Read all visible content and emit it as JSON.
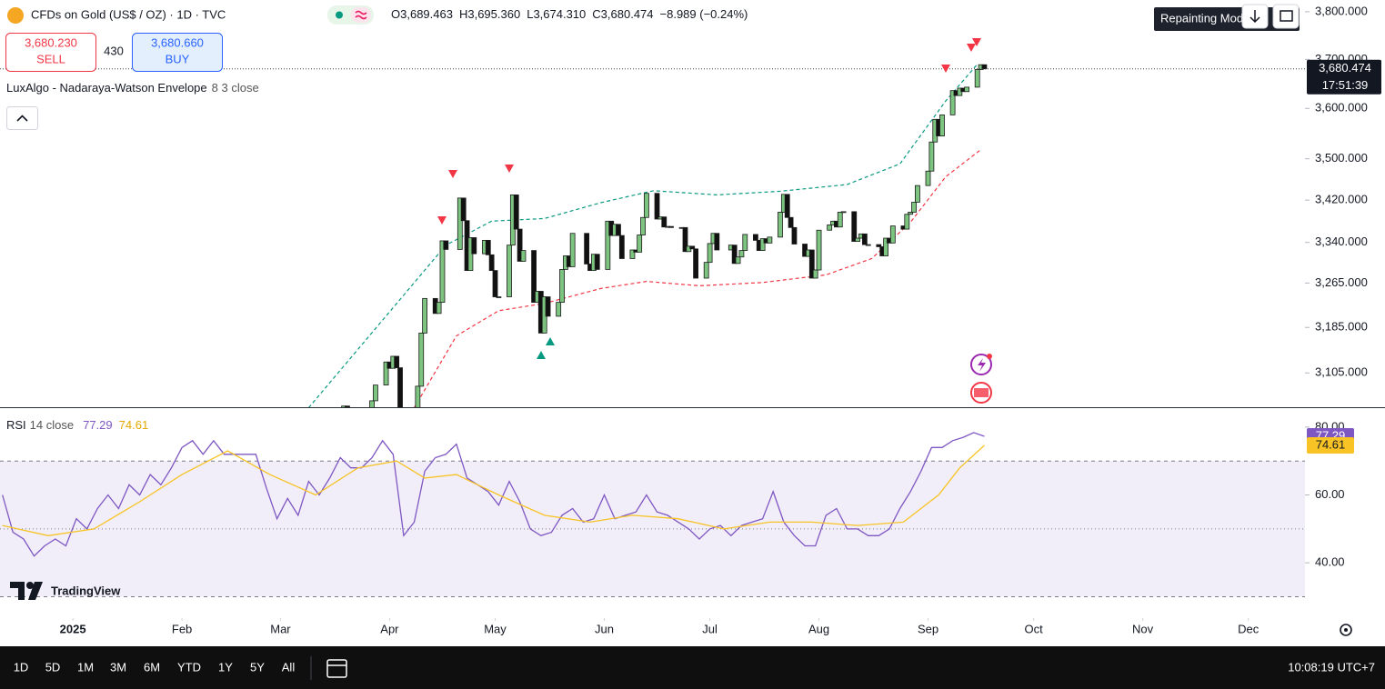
{
  "header": {
    "title": "CFDs on Gold (US$ / OZ) · 1D · TVC",
    "ohlc": [
      {
        "key": "O",
        "value": "3,689.463"
      },
      {
        "key": "H",
        "value": "3,695.360"
      },
      {
        "key": "L",
        "value": "3,674.310"
      },
      {
        "key": "C",
        "value": "3,680.474"
      }
    ],
    "change": "−8.989 (−0.24%)"
  },
  "trade": {
    "sell_price": "3,680.230",
    "sell": "SELL",
    "spread": "430",
    "buy_price": "3,680.660",
    "buy": "BUY"
  },
  "indicator": {
    "name": "LuxAlgo - Nadaraya-Watson Envelope",
    "params": "8 3 close"
  },
  "tooltip": "Repainting Mode",
  "price_label": {
    "price": "3,680.474",
    "countdown": "17:51:39"
  },
  "logo": "TradingView",
  "toolbar": {
    "ranges": [
      "1D",
      "5D",
      "1M",
      "3M",
      "6M",
      "YTD",
      "1Y",
      "5Y",
      "All"
    ],
    "clock": "10:08:19 UTC+7"
  },
  "chart_data": [
    {
      "type": "candlestick",
      "log_scale": true,
      "up_color": "#7cc47f",
      "down_color": "#111111",
      "xlim": [
        -20.7,
        350.1
      ],
      "ylim": [
        3046,
        3825
      ],
      "xticks": [
        {
          "value": 0,
          "label": "2025"
        },
        {
          "value": 31,
          "label": "Feb"
        },
        {
          "value": 59,
          "label": "Mar"
        },
        {
          "value": 90,
          "label": "Apr"
        },
        {
          "value": 120,
          "label": "May"
        },
        {
          "value": 151,
          "label": "Jun"
        },
        {
          "value": 181,
          "label": "Jul"
        },
        {
          "value": 212,
          "label": "Aug"
        },
        {
          "value": 243,
          "label": "Sep"
        },
        {
          "value": 273,
          "label": "Oct"
        },
        {
          "value": 304,
          "label": "Nov"
        },
        {
          "value": 334,
          "label": "Dec"
        }
      ],
      "yticks": [
        {
          "value": 3105,
          "label": "3,105.000"
        },
        {
          "value": 3185,
          "label": "3,185.000"
        },
        {
          "value": 3265,
          "label": "3,265.000"
        },
        {
          "value": 3340,
          "label": "3,340.000"
        },
        {
          "value": 3420,
          "label": "3,420.000"
        },
        {
          "value": 3500,
          "label": "3,500.000"
        },
        {
          "value": 3600,
          "label": "3,600.000"
        },
        {
          "value": 3700,
          "label": "3,700.000"
        },
        {
          "value": 3800,
          "label": "3,800.000"
        }
      ],
      "x": [
        70,
        71,
        72,
        75,
        76,
        77,
        78,
        79,
        82,
        83,
        84,
        85,
        86,
        89,
        90,
        91,
        92,
        93,
        96,
        97,
        98,
        99,
        100,
        103,
        104,
        105,
        106,
        110,
        111,
        112,
        113,
        114,
        117,
        118,
        119,
        120,
        121,
        124,
        125,
        126,
        127,
        128,
        131,
        132,
        133,
        134,
        135,
        138,
        139,
        140,
        141,
        142,
        146,
        147,
        148,
        149,
        152,
        153,
        154,
        155,
        156,
        159,
        160,
        161,
        162,
        163,
        166,
        167,
        168,
        169,
        170,
        173,
        174,
        175,
        176,
        177,
        180,
        181,
        182,
        183,
        187,
        188,
        189,
        190,
        191,
        194,
        195,
        196,
        197,
        198,
        201,
        202,
        203,
        204,
        205,
        208,
        209,
        210,
        211,
        212,
        215,
        216,
        217,
        218,
        219,
        222,
        223,
        224,
        225,
        226,
        229,
        230,
        231,
        232,
        233,
        236,
        237,
        238,
        239,
        240,
        243,
        244,
        245,
        246,
        247,
        250,
        251,
        252,
        253,
        254,
        257,
        258,
        259
      ],
      "close": [
        2935,
        2985,
        2984,
        3001,
        3034,
        3048,
        3044,
        3022,
        3011,
        3020,
        3018,
        3057,
        3084,
        3124,
        3113,
        3134,
        3114,
        3037,
        2982,
        2983,
        3082,
        3175,
        3237,
        3210,
        3230,
        3343,
        3327,
        3424,
        3381,
        3288,
        3349,
        3319,
        3344,
        3317,
        3288,
        3240,
        3240,
        3335,
        3430,
        3365,
        3305,
        3325,
        3230,
        3250,
        3175,
        3240,
        3205,
        3230,
        3290,
        3315,
        3295,
        3357,
        3300,
        3288,
        3318,
        3290,
        3380,
        3353,
        3374,
        3353,
        3310,
        3326,
        3322,
        3354,
        3387,
        3433,
        3384,
        3388,
        3369,
        3370,
        3368,
        3368,
        3323,
        3333,
        3328,
        3274,
        3303,
        3338,
        3357,
        3326,
        3335,
        3301,
        3313,
        3325,
        3355,
        3344,
        3325,
        3347,
        3339,
        3350,
        3397,
        3431,
        3387,
        3368,
        3337,
        3314,
        3326,
        3274,
        3289,
        3363,
        3373,
        3380,
        3369,
        3397,
        3398,
        3342,
        3348,
        3356,
        3336,
        3336,
        3332,
        3315,
        3348,
        3339,
        3371,
        3365,
        3393,
        3397,
        3416,
        3448,
        3476,
        3533,
        3578,
        3545,
        3587,
        3636,
        3626,
        3641,
        3634,
        3643,
        3679,
        3689,
        3680.474
      ],
      "upper": {
        "color": "#089981",
        "x": [
          67,
          106,
          119,
          134,
          150,
          165,
          183,
          201,
          220,
          235,
          248,
          257
        ],
        "values": [
          3045,
          3335,
          3380,
          3385,
          3415,
          3438,
          3430,
          3437,
          3450,
          3490,
          3615,
          3690
        ]
      },
      "lower": {
        "color": "#f23645",
        "x": [
          97,
          109,
          121,
          134,
          150,
          163,
          178,
          196,
          214,
          227,
          238,
          248,
          258
        ],
        "values": [
          3045,
          3170,
          3215,
          3228,
          3255,
          3268,
          3260,
          3266,
          3280,
          3310,
          3378,
          3465,
          3518
        ]
      }
    },
    {
      "type": "line",
      "title": "RSI",
      "params": "14 close",
      "xlim": [
        -20.7,
        350.1
      ],
      "ylim": [
        23.7,
        85.6
      ],
      "yticks": [
        {
          "value": 40,
          "label": "40.00"
        },
        {
          "value": 60,
          "label": "60.00"
        },
        {
          "value": 80,
          "label": "80.00"
        }
      ],
      "band_lines": [
        30,
        50,
        70
      ],
      "value_labels": [
        "77.29",
        "74.61"
      ],
      "series": [
        {
          "color": "#7e57c2",
          "x": [
            -20,
            -17,
            -14,
            -11,
            -8,
            -5,
            -2,
            1,
            4,
            7,
            10,
            13,
            16,
            19,
            22,
            25,
            28,
            31,
            34,
            37,
            40,
            43,
            46,
            49,
            52,
            55,
            58,
            61,
            64,
            67,
            70,
            73,
            76,
            79,
            82,
            85,
            88,
            91,
            94,
            97,
            100,
            103,
            106,
            109,
            112,
            115,
            118,
            121,
            124,
            127,
            130,
            133,
            136,
            139,
            142,
            145,
            148,
            151,
            154,
            157,
            160,
            163,
            166,
            169,
            172,
            175,
            178,
            181,
            184,
            187,
            190,
            193,
            196,
            199,
            202,
            205,
            208,
            211,
            214,
            217,
            220,
            223,
            226,
            229,
            232,
            235,
            238,
            241,
            244,
            247,
            250,
            253,
            256,
            259
          ],
          "values": [
            60,
            49,
            47,
            42,
            45,
            47,
            45,
            53,
            50,
            56,
            60,
            56,
            63,
            60,
            66,
            63,
            68,
            74,
            76,
            72,
            76,
            72,
            72,
            72,
            72,
            62,
            53,
            59,
            54,
            64,
            60,
            65,
            71,
            68,
            68,
            71,
            76,
            72,
            48,
            52,
            67,
            71,
            72,
            75,
            65,
            63,
            61,
            57,
            64,
            58,
            50,
            48,
            49,
            54,
            56,
            52,
            53,
            60,
            53,
            54,
            55,
            60,
            55,
            54,
            52,
            50,
            47,
            50,
            51,
            48,
            51,
            52,
            53,
            61,
            52,
            48,
            45,
            45,
            54,
            56,
            50,
            50,
            48,
            48,
            50,
            56,
            61,
            67,
            74,
            74,
            76,
            77,
            78.4,
            77.29
          ]
        },
        {
          "color": "#f7c325",
          "x": [
            -20,
            -7,
            6,
            19,
            31,
            44,
            56,
            69,
            81,
            92,
            100,
            109,
            121,
            134,
            147,
            159,
            172,
            185,
            198,
            210,
            223,
            236,
            246,
            252,
            259
          ],
          "values": [
            51,
            48,
            50,
            58,
            66,
            73,
            66,
            60,
            68,
            70,
            65,
            66,
            60,
            54,
            52,
            54,
            53,
            50,
            52,
            52,
            51,
            52,
            60,
            68,
            74.61
          ]
        }
      ]
    }
  ]
}
